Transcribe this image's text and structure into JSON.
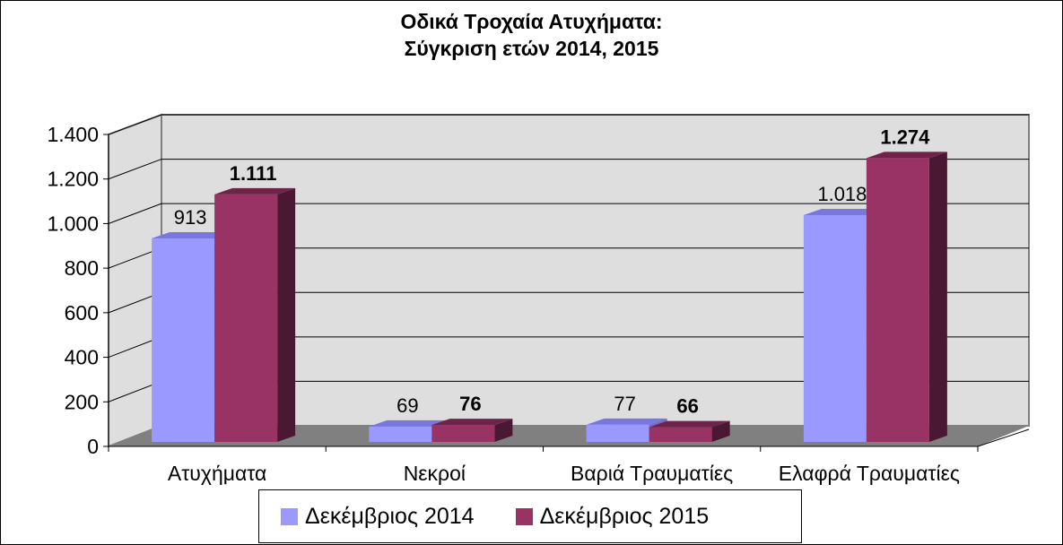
{
  "chart_data": {
    "type": "bar",
    "title": [
      "Οδικά Τροχαία Ατυχήματα:",
      "Σύγκριση ετών 2014, 2015"
    ],
    "categories": [
      "Ατυχήματα",
      "Νεκροί",
      "Βαριά Τραυματίες",
      "Ελαφρά Τραυματίες"
    ],
    "series": [
      {
        "name": "Δεκέμβριος 2014",
        "values": [
          913,
          69,
          77,
          1018
        ],
        "labels": [
          "913",
          "69",
          "77",
          "1.018"
        ],
        "color": "#9999ff",
        "bold": false
      },
      {
        "name": "Δεκέμβριος 2015",
        "values": [
          1111,
          76,
          66,
          1274
        ],
        "labels": [
          "1.111",
          "76",
          "66",
          "1.274"
        ],
        "color": "#993366",
        "bold": true
      }
    ],
    "ylim": [
      0,
      1400
    ],
    "yticks": [
      0,
      200,
      400,
      600,
      800,
      1000,
      1200,
      1400
    ],
    "ytick_labels": [
      "0",
      "200",
      "400",
      "600",
      "800",
      "1.000",
      "1.200",
      "1.400"
    ],
    "xlabel": "",
    "ylabel": "",
    "grid": true,
    "legend_position": "bottom",
    "colors": {
      "wall": "#dedede",
      "floor": "#808080",
      "series1_top": "#7777dd",
      "series1_side": "#6f6fc0",
      "series2_top": "#6e2349",
      "series2_side": "#4a1833"
    }
  }
}
